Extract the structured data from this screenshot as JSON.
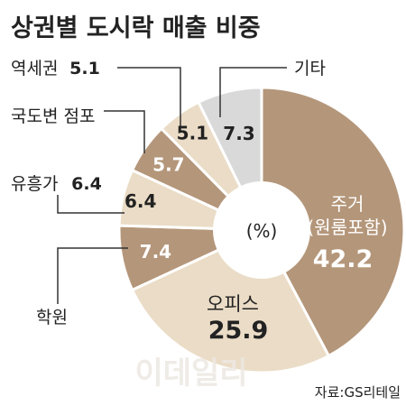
{
  "chart_data": {
    "type": "pie",
    "title": "상권별 도시락 매출 비중",
    "center_label": "(%)",
    "source": "자료:GS리테일",
    "slices": [
      {
        "label_lines": [
          "주거",
          "(원룸포함)"
        ],
        "value": 42.2,
        "value_label": "42.2",
        "color": "#b4967a"
      },
      {
        "label_lines": [
          "오피스"
        ],
        "value": 25.9,
        "value_label": "25.9",
        "color": "#eadcc6"
      },
      {
        "label_lines": [
          "학원"
        ],
        "value": 7.4,
        "value_label": "7.4",
        "color": "#b4967a"
      },
      {
        "label_lines": [
          "유흥가"
        ],
        "value": 6.4,
        "value_label": "6.4",
        "color": "#eadcc6"
      },
      {
        "label_lines": [
          "국도변 점포"
        ],
        "value": 5.7,
        "value_label": "5.7",
        "color": "#b4967a"
      },
      {
        "label_lines": [
          "역세권"
        ],
        "value": 5.1,
        "value_label": "5.1",
        "color": "#eadcc6"
      },
      {
        "label_lines": [
          "기타"
        ],
        "value": 7.3,
        "value_label": "7.3",
        "color": "#d9d9d9"
      }
    ],
    "colors": {
      "text": "#222222",
      "text_on_dark": "#ffffff",
      "leader": "#333333",
      "stroke": "#ffffff"
    }
  },
  "watermark": "이데일리"
}
